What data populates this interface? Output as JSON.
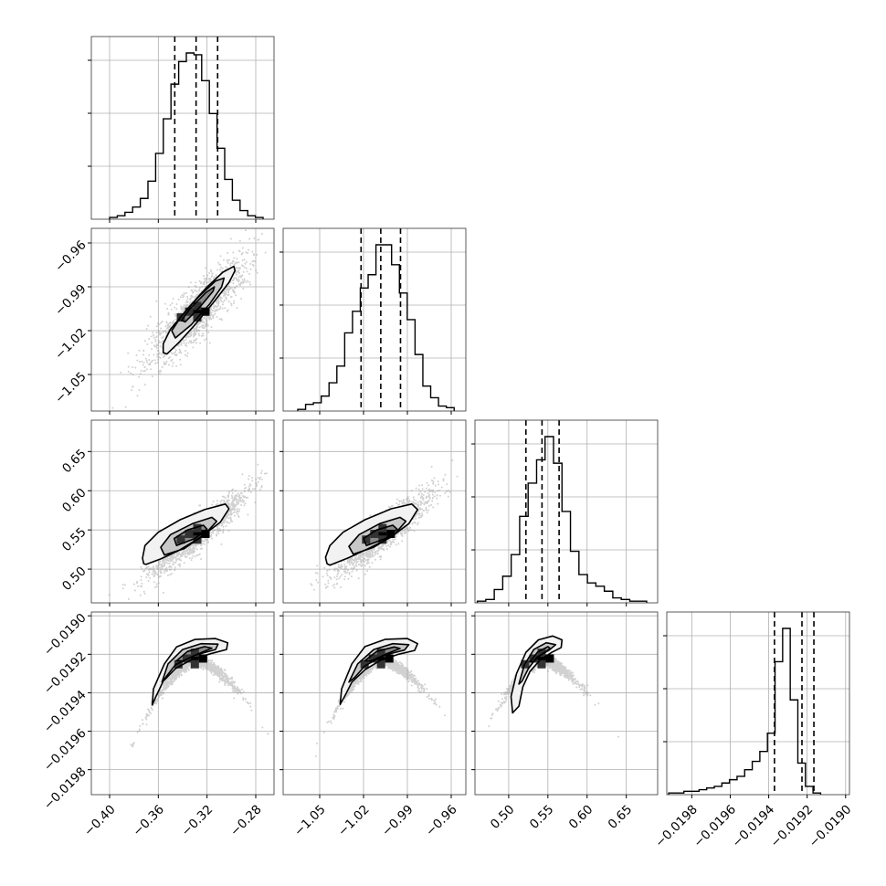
{
  "chart_data": {
    "type": "corner",
    "parameters": [
      {
        "range": [
          -0.415,
          -0.265
        ],
        "ticks": [
          -0.4,
          -0.36,
          -0.32,
          -0.28
        ],
        "tick_labels": [
          "−0.40",
          "−0.36",
          "−0.32",
          "−0.28"
        ],
        "quantiles": [
          -0.3465,
          -0.329,
          -0.3113
        ],
        "hist": {
          "start": -0.4,
          "bin_width": 0.0063,
          "counts": [
            1,
            2,
            4,
            7,
            12,
            22,
            38,
            58,
            78,
            91,
            96,
            95,
            80,
            61,
            41,
            23,
            11,
            5,
            2,
            1
          ]
        }
      },
      {
        "range": [
          -1.075,
          -0.95
        ],
        "ticks": [
          -1.05,
          -1.02,
          -0.99,
          -0.96
        ],
        "tick_labels": [
          "−1.05",
          "−1.02",
          "−0.99",
          "−0.96"
        ],
        "quantiles": [
          -1.0217,
          -1.0082,
          -0.9947
        ],
        "hist": {
          "start": -1.065,
          "bin_width": 0.00535,
          "counts": [
            1,
            4,
            5,
            9,
            17,
            27,
            47,
            60,
            74,
            82,
            100,
            100,
            88,
            71,
            55,
            34,
            15,
            8,
            3,
            2
          ]
        }
      },
      {
        "range": [
          0.457,
          0.69
        ],
        "ticks": [
          0.5,
          0.55,
          0.6,
          0.65
        ],
        "tick_labels": [
          "0.50",
          "0.55",
          "0.60",
          "0.65"
        ],
        "quantiles": [
          0.522,
          0.5425,
          0.5643
        ],
        "hist": {
          "start": 0.46,
          "bin_width": 0.0108,
          "counts": [
            1,
            2,
            8,
            16,
            29,
            52,
            72,
            86,
            100,
            84,
            55,
            31,
            17,
            12,
            10,
            7,
            3,
            2,
            1,
            1
          ]
        }
      },
      {
        "range": [
          -0.01993,
          -0.01898
        ],
        "ticks": [
          -0.0198,
          -0.0196,
          -0.0194,
          -0.0192,
          -0.019
        ],
        "tick_labels": [
          "−0.0198",
          "−0.0196",
          "−0.0194",
          "−0.0192",
          "−0.0190"
        ],
        "quantiles": [
          -0.01937,
          -0.019227,
          -0.019165
        ],
        "hist": {
          "start": -0.01992,
          "bin_width": 3.95e-05,
          "counts": [
            1,
            1,
            2,
            2,
            3,
            4,
            5,
            7,
            9,
            11,
            15,
            20,
            26,
            37,
            80,
            100,
            57,
            19,
            5,
            1
          ]
        }
      }
    ],
    "pairs": [
      {
        "row": 1,
        "col": 0,
        "center": [
          -0.328,
          -1.007
        ],
        "half_axes": [
          0.0175,
          0.0072
        ],
        "angle": 48,
        "contours": [
          [
            [
              -0.353,
              -1.036
            ],
            [
              -0.343,
              -1.028
            ],
            [
              -0.331,
              -1.017
            ],
            [
              -0.315,
              -1.001
            ],
            [
              -0.302,
              -0.987
            ],
            [
              -0.297,
              -0.979
            ],
            [
              -0.298,
              -0.976
            ],
            [
              -0.307,
              -0.98
            ],
            [
              -0.321,
              -0.991
            ],
            [
              -0.336,
              -1.005
            ],
            [
              -0.35,
              -1.019
            ],
            [
              -0.356,
              -1.029
            ],
            [
              -0.356,
              -1.035
            ]
          ],
          [
            [
              -0.346,
              -1.025
            ],
            [
              -0.333,
              -1.016
            ],
            [
              -0.318,
              -1.002
            ],
            [
              -0.308,
              -0.99
            ],
            [
              -0.306,
              -0.984
            ],
            [
              -0.313,
              -0.986
            ],
            [
              -0.327,
              -0.997
            ],
            [
              -0.341,
              -1.01
            ],
            [
              -0.349,
              -1.02
            ]
          ],
          [
            [
              -0.338,
              -1.014
            ],
            [
              -0.325,
              -1.003
            ],
            [
              -0.315,
              -0.993
            ],
            [
              -0.314,
              -0.99
            ],
            [
              -0.321,
              -0.994
            ],
            [
              -0.334,
              -1.005
            ],
            [
              -0.341,
              -1.013
            ]
          ]
        ]
      },
      {
        "row": 2,
        "col": 0,
        "center": [
          -0.328,
          0.545
        ],
        "half_axes": [
          0.0165,
          0.0095
        ],
        "angle": 40,
        "contours": [
          [
            [
              -0.37,
              0.506
            ],
            [
              -0.358,
              0.513
            ],
            [
              -0.343,
              0.524
            ],
            [
              -0.325,
              0.541
            ],
            [
              -0.309,
              0.56
            ],
            [
              -0.302,
              0.577
            ],
            [
              -0.305,
              0.583
            ],
            [
              -0.322,
              0.576
            ],
            [
              -0.342,
              0.563
            ],
            [
              -0.36,
              0.547
            ],
            [
              -0.371,
              0.53
            ],
            [
              -0.373,
              0.514
            ],
            [
              -0.372,
              0.507
            ]
          ],
          [
            [
              -0.355,
              0.518
            ],
            [
              -0.339,
              0.526
            ],
            [
              -0.322,
              0.544
            ],
            [
              -0.312,
              0.561
            ],
            [
              -0.316,
              0.566
            ],
            [
              -0.332,
              0.558
            ],
            [
              -0.35,
              0.544
            ],
            [
              -0.358,
              0.528
            ]
          ],
          [
            [
              -0.345,
              0.53
            ],
            [
              -0.33,
              0.539
            ],
            [
              -0.32,
              0.551
            ],
            [
              -0.323,
              0.556
            ],
            [
              -0.336,
              0.55
            ],
            [
              -0.347,
              0.539
            ]
          ]
        ]
      },
      {
        "row": 2,
        "col": 1,
        "center": [
          -1.007,
          0.545
        ],
        "half_axes": [
          0.0135,
          0.0095
        ],
        "angle": 40,
        "contours": [
          [
            [
              -1.043,
              0.505
            ],
            [
              -1.031,
              0.514
            ],
            [
              -1.017,
              0.526
            ],
            [
              -1.002,
              0.54
            ],
            [
              -0.989,
              0.558
            ],
            [
              -0.983,
              0.576
            ],
            [
              -0.987,
              0.583
            ],
            [
              -1.001,
              0.577
            ],
            [
              -1.019,
              0.563
            ],
            [
              -1.034,
              0.547
            ],
            [
              -1.043,
              0.53
            ],
            [
              -1.046,
              0.515
            ],
            [
              -1.045,
              0.507
            ]
          ],
          [
            [
              -1.027,
              0.519
            ],
            [
              -1.013,
              0.528
            ],
            [
              -0.999,
              0.544
            ],
            [
              -0.991,
              0.561
            ],
            [
              -0.995,
              0.566
            ],
            [
              -1.009,
              0.558
            ],
            [
              -1.023,
              0.544
            ],
            [
              -1.03,
              0.529
            ]
          ],
          [
            [
              -1.018,
              0.53
            ],
            [
              -1.005,
              0.539
            ],
            [
              -0.997,
              0.551
            ],
            [
              -1.0,
              0.556
            ],
            [
              -1.011,
              0.55
            ],
            [
              -1.02,
              0.539
            ]
          ]
        ]
      },
      {
        "row": 3,
        "col": 0,
        "center": [
          -0.33,
          -0.019222
        ],
        "half_axes": [
          0.014,
          1.65e-05
        ],
        "angle": 10,
        "contours": [
          [
            [
              -0.365,
              -0.019463
            ],
            [
              -0.364,
              -0.01938
            ],
            [
              -0.355,
              -0.01925
            ],
            [
              -0.345,
              -0.019162
            ],
            [
              -0.33,
              -0.019123
            ],
            [
              -0.313,
              -0.019118
            ],
            [
              -0.303,
              -0.01914
            ],
            [
              -0.304,
              -0.019175
            ],
            [
              -0.316,
              -0.019195
            ],
            [
              -0.332,
              -0.019225
            ],
            [
              -0.346,
              -0.019275
            ],
            [
              -0.356,
              -0.01934
            ],
            [
              -0.362,
              -0.01942
            ]
          ],
          [
            [
              -0.357,
              -0.019345
            ],
            [
              -0.352,
              -0.01925
            ],
            [
              -0.34,
              -0.019175
            ],
            [
              -0.325,
              -0.019145
            ],
            [
              -0.311,
              -0.019147
            ],
            [
              -0.313,
              -0.019175
            ],
            [
              -0.33,
              -0.019205
            ],
            [
              -0.346,
              -0.019255
            ],
            [
              -0.354,
              -0.01932
            ]
          ],
          [
            [
              -0.345,
              -0.019233
            ],
            [
              -0.336,
              -0.019185
            ],
            [
              -0.322,
              -0.01916
            ],
            [
              -0.316,
              -0.019168
            ],
            [
              -0.328,
              -0.0192
            ],
            [
              -0.34,
              -0.019235
            ]
          ]
        ]
      },
      {
        "row": 3,
        "col": 1,
        "center": [
          -1.008,
          -0.019222
        ],
        "half_axes": [
          0.011,
          1.65e-05
        ],
        "angle": 10,
        "contours": [
          [
            [
              -1.036,
              -0.01946
            ],
            [
              -1.035,
              -0.01938
            ],
            [
              -1.028,
              -0.01925
            ],
            [
              -1.019,
              -0.01916
            ],
            [
              -1.005,
              -0.019122
            ],
            [
              -0.99,
              -0.019118
            ],
            [
              -0.983,
              -0.019145
            ],
            [
              -0.985,
              -0.01918
            ],
            [
              -0.996,
              -0.0192
            ],
            [
              -1.008,
              -0.01923
            ],
            [
              -1.019,
              -0.01928
            ],
            [
              -1.028,
              -0.019345
            ],
            [
              -1.033,
              -0.01942
            ]
          ],
          [
            [
              -1.03,
              -0.019345
            ],
            [
              -1.024,
              -0.01925
            ],
            [
              -1.013,
              -0.019175
            ],
            [
              -1.0,
              -0.019145
            ],
            [
              -0.989,
              -0.01915
            ],
            [
              -0.992,
              -0.019178
            ],
            [
              -1.006,
              -0.019205
            ],
            [
              -1.019,
              -0.01926
            ],
            [
              -1.026,
              -0.01932
            ]
          ],
          [
            [
              -1.019,
              -0.019233
            ],
            [
              -1.011,
              -0.019185
            ],
            [
              -0.999,
              -0.019162
            ],
            [
              -0.995,
              -0.01917
            ],
            [
              -1.005,
              -0.0192
            ],
            [
              -1.015,
              -0.019235
            ]
          ]
        ]
      },
      {
        "row": 3,
        "col": 2,
        "center": [
          0.542,
          -0.019222
        ],
        "half_axes": [
          0.019,
          1.65e-05
        ],
        "angle": 10,
        "contours": [
          [
            [
              0.505,
              -0.019505
            ],
            [
              0.503,
              -0.01942
            ],
            [
              0.51,
              -0.0193
            ],
            [
              0.522,
              -0.01919
            ],
            [
              0.538,
              -0.019125
            ],
            [
              0.556,
              -0.019105
            ],
            [
              0.568,
              -0.019125
            ],
            [
              0.567,
              -0.019165
            ],
            [
              0.555,
              -0.01919
            ],
            [
              0.54,
              -0.01923
            ],
            [
              0.527,
              -0.01929
            ],
            [
              0.518,
              -0.01937
            ],
            [
              0.513,
              -0.01947
            ]
          ],
          [
            [
              0.513,
              -0.019355
            ],
            [
              0.52,
              -0.019255
            ],
            [
              0.532,
              -0.019175
            ],
            [
              0.548,
              -0.01914
            ],
            [
              0.56,
              -0.01915
            ],
            [
              0.551,
              -0.01918
            ],
            [
              0.536,
              -0.019215
            ],
            [
              0.525,
              -0.019275
            ],
            [
              0.517,
              -0.01934
            ]
          ],
          [
            [
              0.527,
              -0.01924
            ],
            [
              0.537,
              -0.019188
            ],
            [
              0.55,
              -0.01916
            ],
            [
              0.553,
              -0.01917
            ],
            [
              0.541,
              -0.019203
            ],
            [
              0.531,
              -0.01924
            ]
          ]
        ]
      }
    ]
  }
}
